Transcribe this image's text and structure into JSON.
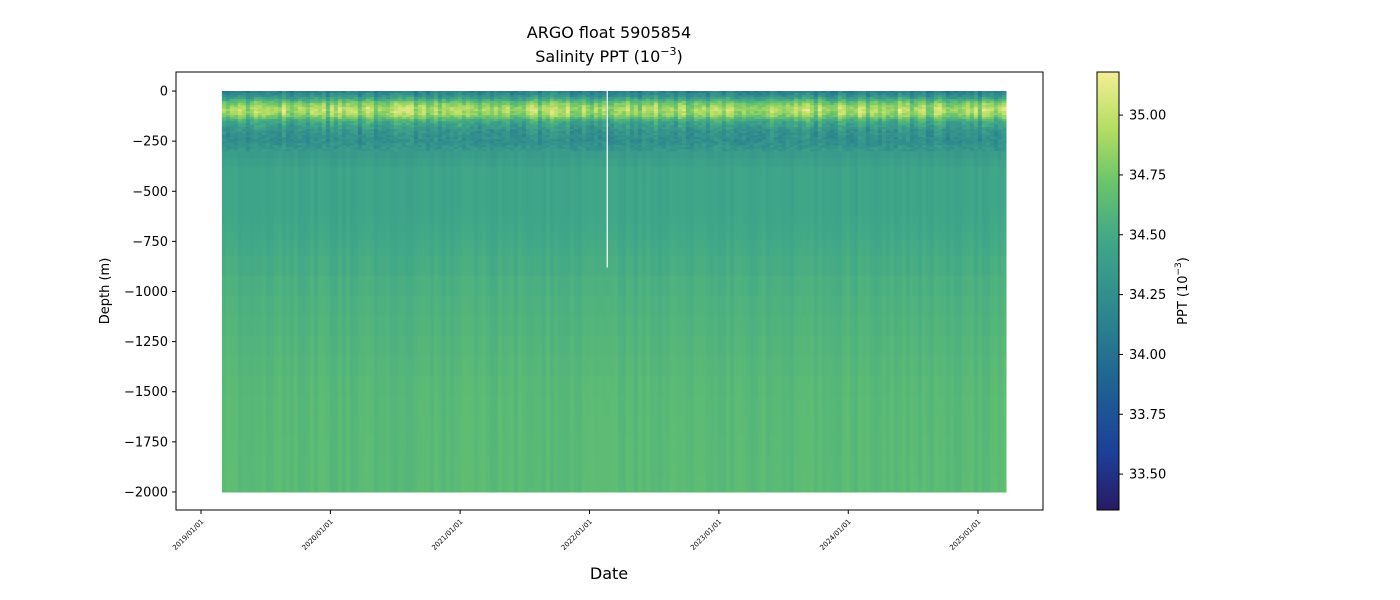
{
  "chart_data": {
    "type": "heatmap",
    "title_line1": "ARGO float 5905854",
    "title_line2_prefix": "Salinity PPT (10",
    "title_line2_exp": "−3",
    "title_line2_suffix": ")",
    "xlabel": "Date",
    "ylabel": "Depth (m)",
    "colorbar_label_prefix": "PPT (10",
    "colorbar_label_exp": "−3",
    "colorbar_label_suffix": ")",
    "colormap": "haline",
    "x_ticks": [
      "2019/01/01",
      "2020/01/01",
      "2021/01/01",
      "2022/01/01",
      "2023/01/01",
      "2024/01/01",
      "2025/01/01"
    ],
    "x_start": "2019-03-01",
    "x_end": "2025-03-15",
    "x_gap": "2022-02-20",
    "y_ticks": [
      0,
      -250,
      -500,
      -750,
      -1000,
      -1250,
      -1500,
      -1750,
      -2000
    ],
    "ylim": [
      -2090,
      95
    ],
    "profile_depth_range": [
      -2000,
      0
    ],
    "gap_depth_range": [
      -880,
      0
    ],
    "colorbar_ticks": [
      35.0,
      34.75,
      34.5,
      34.25,
      34.0,
      33.75,
      33.5
    ],
    "colorbar_range": [
      33.35,
      35.18
    ],
    "salinity_depth_profile": {
      "depth": [
        0,
        -30,
        -60,
        -90,
        -120,
        -150,
        -200,
        -250,
        -300,
        -400,
        -600,
        -800,
        -1000,
        -1500,
        -2000
      ],
      "salinity": [
        34.1,
        34.35,
        34.75,
        34.95,
        34.85,
        34.5,
        34.3,
        34.25,
        34.35,
        34.45,
        34.45,
        34.5,
        34.55,
        34.62,
        34.63
      ]
    },
    "colors": {
      "low": "#2a1864",
      "mid": "#2f8b8d",
      "high": "#f0ec90",
      "background": "#ffffff"
    }
  }
}
